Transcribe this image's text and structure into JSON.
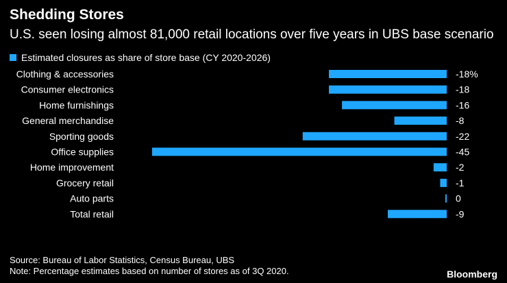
{
  "header": {
    "title": "Shedding Stores",
    "subtitle": "U.S. seen losing almost 81,000 retail locations over five years in UBS base scenario"
  },
  "legend": {
    "label": "Estimated closures as share of store base (CY 2020-2026)",
    "color": "#1fa7ff"
  },
  "chart_data": {
    "type": "bar",
    "orientation": "horizontal",
    "title": "Shedding Stores",
    "subtitle": "U.S. seen losing almost 81,000 retail locations over five years in UBS base scenario",
    "categories": [
      "Clothing & accessories",
      "Consumer electronics",
      "Home furnishings",
      "General merchandise",
      "Sporting goods",
      "Office supplies",
      "Home improvement",
      "Grocery retail",
      "Auto parts",
      "Total retail"
    ],
    "series": [
      {
        "name": "Estimated closures as share of store base (CY 2020-2026)",
        "values": [
          -18,
          -18,
          -16,
          -8,
          -22,
          -45,
          -2,
          -1,
          0,
          -9
        ],
        "color": "#1fa7ff"
      }
    ],
    "value_labels": [
      "-18%",
      "-18",
      "-16",
      "-8",
      "-22",
      "-45",
      "-2",
      "-1",
      "0",
      "-9"
    ],
    "xlim": [
      -45,
      0
    ],
    "unit": "%"
  },
  "footer": {
    "source": "Source: Bureau of Labor Statistics, Census Bureau, UBS",
    "note": "Note: Percentage estimates based on number of stores as of 3Q 2020.",
    "brand": "Bloomberg"
  }
}
